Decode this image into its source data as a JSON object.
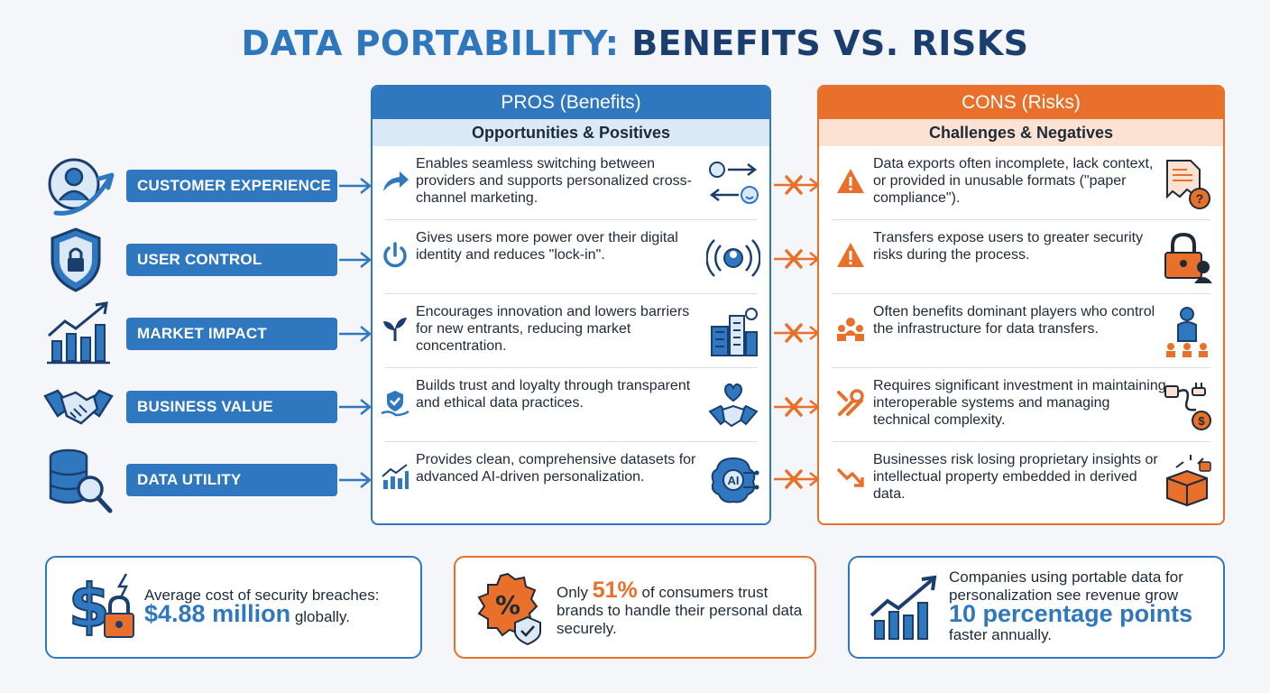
{
  "title": {
    "part1": "DATA PORTABILITY:",
    "part2": "BENEFITS VS. RISKS"
  },
  "pros": {
    "header": "PROS (Benefits)",
    "subheader": "Opportunities & Positives"
  },
  "cons": {
    "header": "CONS (Risks)",
    "subheader": "Challenges & Negatives"
  },
  "categories": [
    {
      "label": "CUSTOMER EXPERIENCE",
      "icon": "user-growth-icon",
      "pro": "Enables seamless switching between providers and supports personalized cross-channel marketing.",
      "con": "Data exports often incomplete, lack context, or provided in unusable formats (\"paper compliance\")."
    },
    {
      "label": "USER CONTROL",
      "icon": "shield-lock-icon",
      "pro": "Gives users more power over their digital identity and reduces \"lock-in\".",
      "con": "Transfers expose users to greater security risks during the process."
    },
    {
      "label": "MARKET IMPACT",
      "icon": "bar-chart-growth-icon",
      "pro": "Encourages innovation and lowers barriers for new entrants, reducing market concentration.",
      "con": "Often benefits dominant players who control the infrastructure for data transfers."
    },
    {
      "label": "BUSINESS VALUE",
      "icon": "handshake-icon",
      "pro": "Builds trust and loyalty through transparent and ethical data practices.",
      "con": "Requires significant investment in maintaining interoperable systems and managing technical complexity."
    },
    {
      "label": "DATA UTILITY",
      "icon": "database-search-icon",
      "pro": "Provides clean, comprehensive datasets for advanced AI-driven personalization.",
      "con": "Businesses risk losing proprietary insights or intellectual property embedded in derived data."
    }
  ],
  "ai_label": "AI",
  "stats": {
    "breach": {
      "prefix": "Average cost of security breaches:",
      "value": "$4.88 million",
      "suffix": "globally."
    },
    "trust": {
      "prefix": "Only",
      "value": "51%",
      "suffix": "of consumers trust brands to handle their personal data securely."
    },
    "revenue": {
      "prefix": "Companies using portable data for personalization see revenue grow",
      "value": "10 percentage points",
      "suffix": "faster annually."
    }
  },
  "colors": {
    "blue": "#2f78bf",
    "navy": "#1a3e6e",
    "orange": "#e8702a",
    "text": "#1e2a38"
  }
}
